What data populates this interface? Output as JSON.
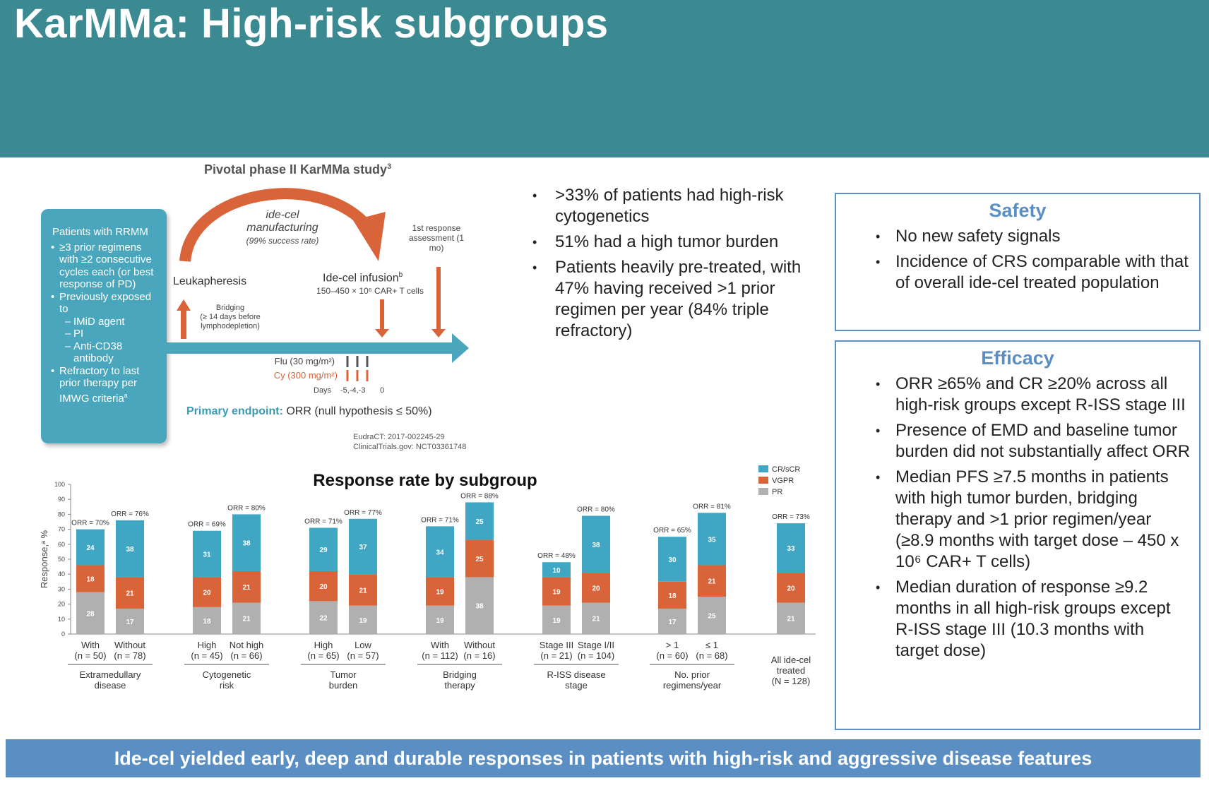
{
  "header": {
    "title": "KarMMa: High-risk subgroups"
  },
  "study": {
    "title": "Pivotal phase II KarMMa study",
    "title_sup": "3",
    "criteria_title": "Patients with RRMM",
    "criteria": [
      {
        "text": "≥3 prior regimens with ≥2 consecutive cycles each (or best response of PD)",
        "sub": false
      },
      {
        "text": "Previously exposed to",
        "sub": false
      },
      {
        "text": "IMiD agent",
        "sub": true
      },
      {
        "text": "PI",
        "sub": true
      },
      {
        "text": "Anti-CD38 antibody",
        "sub": true
      },
      {
        "text": "Refractory to last prior therapy per IMWG criteria",
        "sub": false,
        "sup": "a"
      }
    ],
    "manufacturing": "ide-cel manufacturing",
    "manufacturing_rate": "(99% success rate)",
    "leukapheresis": "Leukapheresis",
    "bridging": "Bridging",
    "bridging_detail": "(≥ 14 days before lymphodepletion)",
    "infusion": "Ide-cel infusion",
    "infusion_sup": "b",
    "infusion_dose": "150–450 × 10⁶ CAR+ T cells",
    "response_assessment": "1st response assessment (1 mo)",
    "flu": "Flu (30 mg/m²)",
    "cy": "Cy (300 mg/m²)",
    "days_label": "Days",
    "days_values": "-5,-4,-3",
    "day_zero": "0",
    "primary_label": "Primary endpoint:",
    "primary_text": "ORR (null hypothesis ≤ 50%)",
    "eudract": "EudraCT: 2017-002245-29",
    "clinicaltrials": "ClinicalTrials.gov: NCT03361748"
  },
  "bullets": [
    ">33% of patients had high-risk cytogenetics",
    "51% had a high tumor burden",
    "Patients heavily pre-treated, with 47% having received >1 prior regimen per year (84% triple refractory)"
  ],
  "safety": {
    "title": "Safety",
    "items": [
      "No new safety signals",
      "Incidence of CRS comparable with that of overall ide-cel treated population"
    ]
  },
  "efficacy": {
    "title": "Efficacy",
    "items": [
      "ORR ≥65% and CR ≥20% across all high-risk groups except R-ISS stage III",
      "Presence of EMD and baseline tumor burden did not substantially affect ORR",
      "Median PFS ≥7.5 months in patients with high tumor burden, bridging therapy and >1 prior regimen/year (≥8.9 months with target dose – 450 x 10⁶ CAR+ T cells)",
      "Median duration of response ≥9.2 months in all high-risk groups except R-ISS stage III (10.3 months with target dose)"
    ]
  },
  "banner": "Ide-cel yielded early, deep and durable responses in patients with high-risk and aggressive disease features",
  "colors": {
    "header": "#3c8a91",
    "cr": "#3fa7c4",
    "vgpr": "#d9643a",
    "pr": "#b0b0b0",
    "box": "#5b8fc4"
  },
  "chart_data": {
    "type": "bar",
    "title": "Response rate by subgroup",
    "ylabel": "Response,ᵃ %",
    "xlabel": "",
    "ylim": [
      0,
      100
    ],
    "yticks": [
      0,
      10,
      20,
      30,
      40,
      50,
      60,
      70,
      80,
      90,
      100
    ],
    "stacked": true,
    "legend": {
      "position": "top-right",
      "entries": [
        "CR/sCR",
        "VGPR",
        "PR"
      ]
    },
    "series_order": [
      "PR",
      "VGPR",
      "CR/sCR"
    ],
    "groups": [
      {
        "name": "Extramedullary disease",
        "bars": [
          {
            "label": "With",
            "n": "(n = 50)",
            "orr": "ORR = 70%",
            "CR/sCR": 24,
            "VGPR": 18,
            "PR": 28
          },
          {
            "label": "Without",
            "n": "(n = 78)",
            "orr": "ORR = 76%",
            "CR/sCR": 38,
            "VGPR": 21,
            "PR": 17
          }
        ]
      },
      {
        "name": "Cytogenetic risk",
        "bars": [
          {
            "label": "High",
            "n": "(n = 45)",
            "orr": "ORR = 69%",
            "CR/sCR": 31,
            "VGPR": 20,
            "PR": 18
          },
          {
            "label": "Not high",
            "n": "(n = 66)",
            "orr": "ORR = 80%",
            "CR/sCR": 38,
            "VGPR": 21,
            "PR": 21
          }
        ]
      },
      {
        "name": "Tumor burden",
        "bars": [
          {
            "label": "High",
            "n": "(n = 65)",
            "orr": "ORR = 71%",
            "CR/sCR": 29,
            "VGPR": 20,
            "PR": 22
          },
          {
            "label": "Low",
            "n": "(n = 57)",
            "orr": "ORR = 77%",
            "CR/sCR": 37,
            "VGPR": 21,
            "PR": 19
          }
        ]
      },
      {
        "name": "Bridging therapy",
        "bars": [
          {
            "label": "With",
            "n": "(n = 112)",
            "orr": "ORR = 71%",
            "CR/sCR": 34,
            "VGPR": 19,
            "PR": 19
          },
          {
            "label": "Without",
            "n": "(n = 16)",
            "orr": "ORR = 88%",
            "CR/sCR": 25,
            "VGPR": 25,
            "PR": 38
          }
        ]
      },
      {
        "name": "R-ISS disease stage",
        "bars": [
          {
            "label": "Stage III",
            "n": "(n = 21)",
            "orr": "ORR = 48%",
            "CR/sCR": 10,
            "VGPR": 19,
            "PR": 19
          },
          {
            "label": "Stage I/II",
            "n": "(n = 104)",
            "orr": "ORR = 80%",
            "CR/sCR": 38,
            "VGPR": 20,
            "PR": 21
          }
        ]
      },
      {
        "name": "No. prior regimens/year",
        "bars": [
          {
            "label": "> 1",
            "n": "(n = 60)",
            "orr": "ORR = 65%",
            "CR/sCR": 30,
            "VGPR": 18,
            "PR": 17
          },
          {
            "label": "≤ 1",
            "n": "(n = 68)",
            "orr": "ORR = 81%",
            "CR/sCR": 35,
            "VGPR": 21,
            "PR": 25
          }
        ]
      },
      {
        "name": "All ide-cel treated (N = 128)",
        "bars": [
          {
            "label": "",
            "n": "",
            "orr": "ORR = 73%",
            "CR/sCR": 33,
            "VGPR": 20,
            "PR": 21
          }
        ]
      }
    ]
  }
}
